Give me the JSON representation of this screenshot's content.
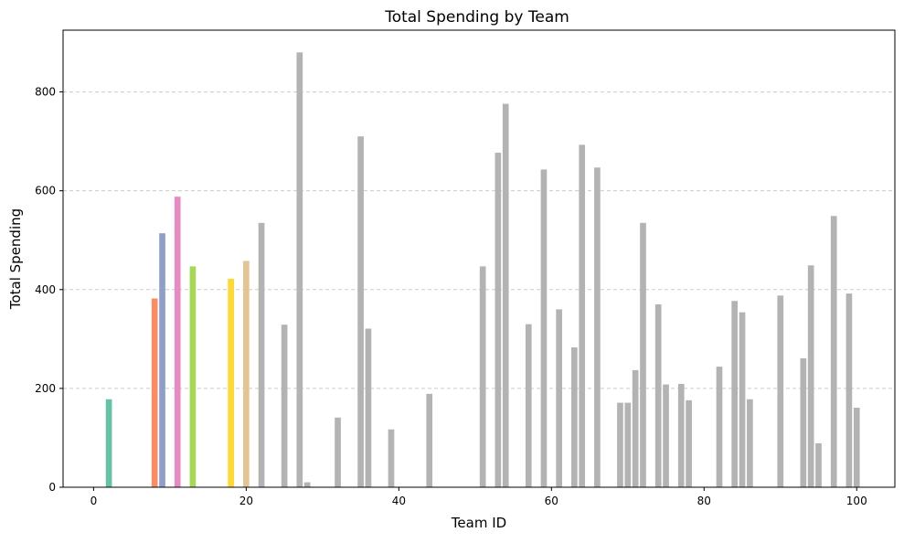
{
  "chart_data": {
    "type": "bar",
    "title": "Total Spending by Team",
    "xlabel": "Team ID",
    "ylabel": "Total Spending",
    "xlim": [
      -4,
      105
    ],
    "ylim": [
      0,
      925
    ],
    "x_ticks": [
      0,
      20,
      40,
      60,
      80,
      100
    ],
    "y_ticks": [
      0,
      200,
      400,
      600,
      800
    ],
    "grid": "y-axis dashed",
    "legend": "none",
    "highlight_colors": {
      "2": "#66c2a5",
      "8": "#fc8d62",
      "9": "#8da0cb",
      "11": "#e78ac3",
      "13": "#a6d854",
      "18": "#ffd92f",
      "20": "#e5c494"
    },
    "default_color": "#b3b3b3",
    "x": [
      2,
      8,
      9,
      11,
      13,
      18,
      20,
      22,
      25,
      27,
      28,
      32,
      35,
      36,
      39,
      44,
      51,
      53,
      54,
      57,
      59,
      61,
      63,
      64,
      66,
      69,
      70,
      71,
      72,
      74,
      75,
      77,
      78,
      82,
      84,
      85,
      86,
      90,
      93,
      94,
      95,
      97,
      99,
      100
    ],
    "values": [
      178,
      382,
      514,
      588,
      447,
      422,
      458,
      535,
      329,
      880,
      10,
      141,
      710,
      321,
      117,
      189,
      447,
      677,
      776,
      330,
      643,
      360,
      283,
      693,
      647,
      171,
      171,
      237,
      535,
      370,
      208,
      209,
      176,
      244,
      377,
      354,
      178,
      388,
      261,
      449,
      89,
      549,
      392,
      161
    ]
  }
}
